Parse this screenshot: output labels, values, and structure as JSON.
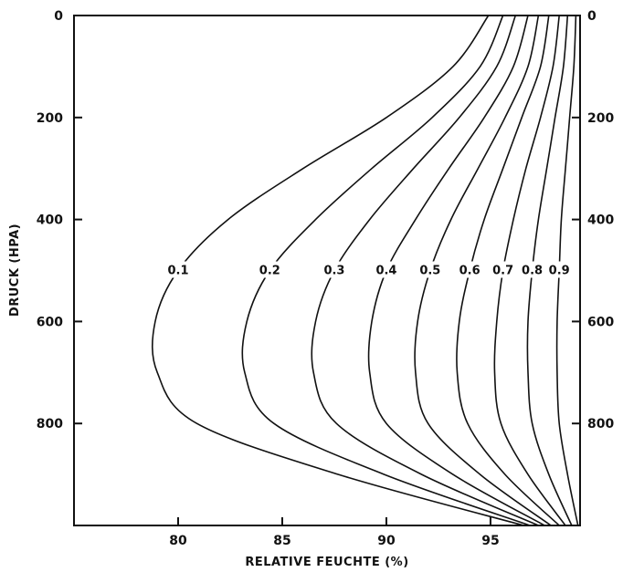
{
  "chart_data": {
    "type": "line",
    "title": "",
    "xlabel": "RELATIVE FEUCHTE (%)",
    "ylabel": "DRUCK (HPA)",
    "xlim": [
      75,
      99.3
    ],
    "ylim": [
      1000,
      0
    ],
    "y_inverted": true,
    "grid": false,
    "legend": "none",
    "x_ticks": [
      80,
      85,
      90,
      95
    ],
    "y_ticks_left": [
      0,
      200,
      400,
      600,
      800
    ],
    "y_ticks_right": [
      0,
      200,
      400,
      600,
      800
    ],
    "series_labels_at_pressure": 500,
    "series": [
      {
        "name": "0.1",
        "points": [
          [
            94.9,
            0
          ],
          [
            93.2,
            100
          ],
          [
            90.0,
            200
          ],
          [
            86.0,
            300
          ],
          [
            82.4,
            400
          ],
          [
            80.0,
            500
          ],
          [
            78.9,
            600
          ],
          [
            79.0,
            700
          ],
          [
            80.9,
            800
          ],
          [
            87.7,
            900
          ],
          [
            96.6,
            1000
          ]
        ]
      },
      {
        "name": "0.2",
        "points": [
          [
            95.6,
            0
          ],
          [
            94.5,
            100
          ],
          [
            92.2,
            200
          ],
          [
            89.3,
            300
          ],
          [
            86.6,
            400
          ],
          [
            84.4,
            500
          ],
          [
            83.3,
            600
          ],
          [
            83.2,
            700
          ],
          [
            84.6,
            800
          ],
          [
            89.9,
            900
          ],
          [
            96.9,
            1000
          ]
        ]
      },
      {
        "name": "0.3",
        "points": [
          [
            96.2,
            0
          ],
          [
            95.3,
            100
          ],
          [
            93.5,
            200
          ],
          [
            91.3,
            300
          ],
          [
            89.2,
            400
          ],
          [
            87.5,
            500
          ],
          [
            86.6,
            600
          ],
          [
            86.5,
            700
          ],
          [
            87.6,
            800
          ],
          [
            91.7,
            900
          ],
          [
            97.3,
            1000
          ]
        ]
      },
      {
        "name": "0.4",
        "points": [
          [
            96.8,
            0
          ],
          [
            96.1,
            100
          ],
          [
            94.7,
            200
          ],
          [
            93.0,
            300
          ],
          [
            91.4,
            400
          ],
          [
            90.0,
            500
          ],
          [
            89.3,
            600
          ],
          [
            89.2,
            700
          ],
          [
            90.0,
            800
          ],
          [
            93.2,
            900
          ],
          [
            97.6,
            1000
          ]
        ]
      },
      {
        "name": "0.5",
        "points": [
          [
            97.3,
            0
          ],
          [
            96.8,
            100
          ],
          [
            95.7,
            200
          ],
          [
            94.4,
            300
          ],
          [
            93.1,
            400
          ],
          [
            92.1,
            500
          ],
          [
            91.5,
            600
          ],
          [
            91.4,
            700
          ],
          [
            92.0,
            800
          ],
          [
            94.5,
            900
          ],
          [
            97.9,
            1000
          ]
        ]
      },
      {
        "name": "0.6",
        "points": [
          [
            97.8,
            0
          ],
          [
            97.4,
            100
          ],
          [
            96.5,
            200
          ],
          [
            95.6,
            300
          ],
          [
            94.7,
            400
          ],
          [
            94.0,
            500
          ],
          [
            93.5,
            600
          ],
          [
            93.4,
            700
          ],
          [
            93.9,
            800
          ],
          [
            95.7,
            900
          ],
          [
            98.3,
            1000
          ]
        ]
      },
      {
        "name": "0.7",
        "points": [
          [
            98.3,
            0
          ],
          [
            98.0,
            100
          ],
          [
            97.4,
            200
          ],
          [
            96.7,
            300
          ],
          [
            96.1,
            400
          ],
          [
            95.6,
            500
          ],
          [
            95.3,
            600
          ],
          [
            95.2,
            700
          ],
          [
            95.5,
            800
          ],
          [
            96.8,
            900
          ],
          [
            98.6,
            1000
          ]
        ]
      },
      {
        "name": "0.8",
        "points": [
          [
            98.7,
            0
          ],
          [
            98.5,
            100
          ],
          [
            98.1,
            200
          ],
          [
            97.7,
            300
          ],
          [
            97.3,
            400
          ],
          [
            97.0,
            500
          ],
          [
            96.8,
            600
          ],
          [
            96.8,
            700
          ],
          [
            97.0,
            800
          ],
          [
            97.8,
            900
          ],
          [
            98.9,
            1000
          ]
        ]
      },
      {
        "name": "0.9",
        "points": [
          [
            99.1,
            0
          ],
          [
            99.0,
            100
          ],
          [
            98.8,
            200
          ],
          [
            98.6,
            300
          ],
          [
            98.4,
            400
          ],
          [
            98.3,
            500
          ],
          [
            98.2,
            600
          ],
          [
            98.2,
            700
          ],
          [
            98.3,
            800
          ],
          [
            98.7,
            900
          ],
          [
            99.2,
            1000
          ]
        ]
      }
    ]
  }
}
